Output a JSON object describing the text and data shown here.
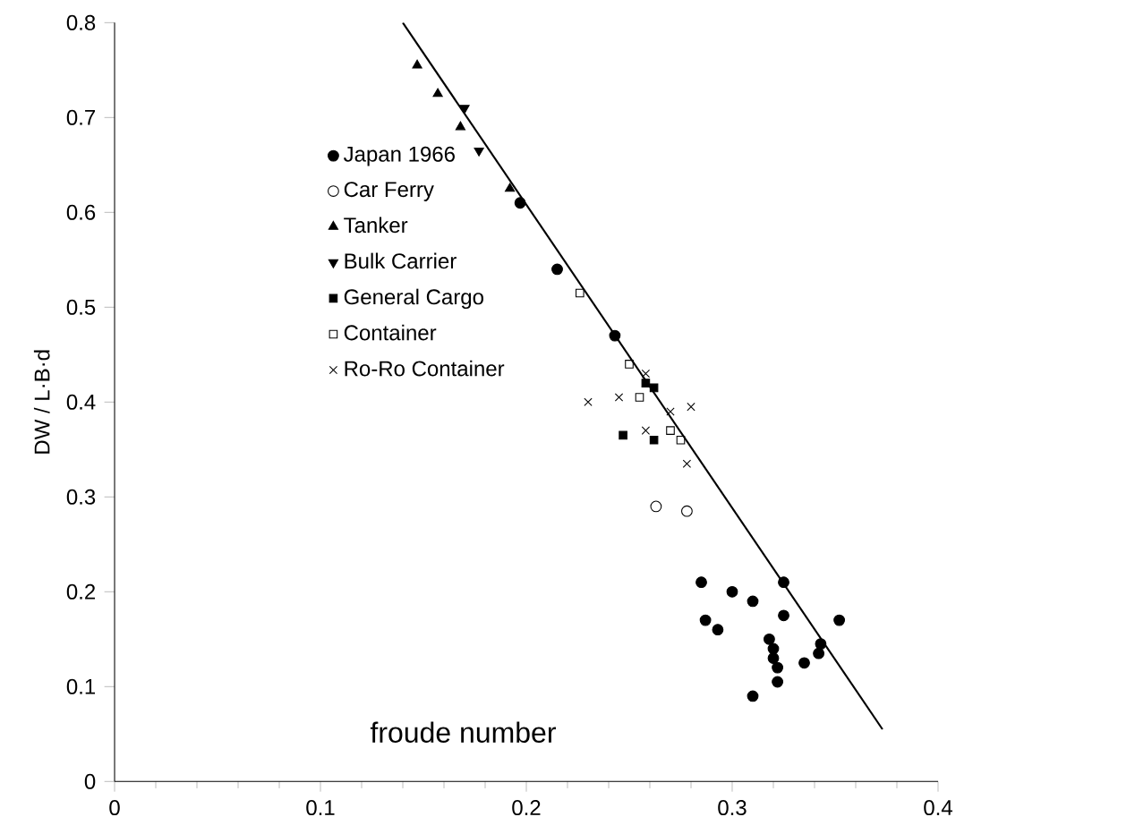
{
  "chart_data": {
    "type": "scatter",
    "ylabel": "DW / L·B·d",
    "xlim": [
      0,
      0.4
    ],
    "ylim": [
      0,
      0.8
    ],
    "xticks": [
      0,
      0.1,
      0.2,
      0.3,
      0.4
    ],
    "yticks": [
      0,
      0.1,
      0.2,
      0.3,
      0.4,
      0.5,
      0.6,
      0.7,
      0.8
    ],
    "legend": "top left",
    "annotations": [
      "froude number"
    ],
    "series": [
      {
        "name": "Japan 1966",
        "color": "#000000",
        "marker": "circle",
        "x": [
          0.197,
          0.215,
          0.243,
          0.285,
          0.287,
          0.293,
          0.3,
          0.31,
          0.31,
          0.318,
          0.32,
          0.32,
          0.322,
          0.322,
          0.325,
          0.325,
          0.335,
          0.342,
          0.343,
          0.352
        ],
        "values": [
          0.61,
          0.54,
          0.47,
          0.21,
          0.17,
          0.16,
          0.2,
          0.19,
          0.09,
          0.15,
          0.14,
          0.13,
          0.12,
          0.105,
          0.21,
          0.175,
          0.125,
          0.135,
          0.145,
          0.17
        ]
      },
      {
        "name": "Car Ferry",
        "color": "#000000",
        "marker": "circle",
        "x": [
          0.263,
          0.278
        ],
        "values": [
          0.29,
          0.285
        ]
      },
      {
        "name": "Tanker",
        "color": "#000000",
        "marker": "triangle",
        "x": [
          0.147,
          0.157,
          0.168,
          0.192
        ],
        "values": [
          0.755,
          0.725,
          0.69,
          0.625
        ]
      },
      {
        "name": "Bulk Carrier",
        "color": "#000000",
        "marker": "triangle",
        "x": [
          0.17,
          0.177
        ],
        "values": [
          0.71,
          0.665
        ]
      },
      {
        "name": "General Cargo",
        "color": "#000000",
        "marker": "square",
        "x": [
          0.247,
          0.258,
          0.262,
          0.262
        ],
        "values": [
          0.365,
          0.42,
          0.415,
          0.36
        ]
      },
      {
        "name": "Container",
        "color": "#000000",
        "marker": "square",
        "x": [
          0.226,
          0.25,
          0.255,
          0.27,
          0.275
        ],
        "values": [
          0.515,
          0.44,
          0.405,
          0.37,
          0.36
        ]
      },
      {
        "name": "Ro-Ro Container",
        "color": "#000000",
        "marker": "cross",
        "x": [
          0.23,
          0.245,
          0.258,
          0.258,
          0.27,
          0.28,
          0.278
        ],
        "values": [
          0.4,
          0.405,
          0.43,
          0.37,
          0.39,
          0.395,
          0.335
        ]
      },
      {
        "type": "line",
        "color": "#000000",
        "marker": "none",
        "x": [
          0.14,
          0.373
        ],
        "values": [
          0.8,
          0.055
        ]
      }
    ]
  }
}
